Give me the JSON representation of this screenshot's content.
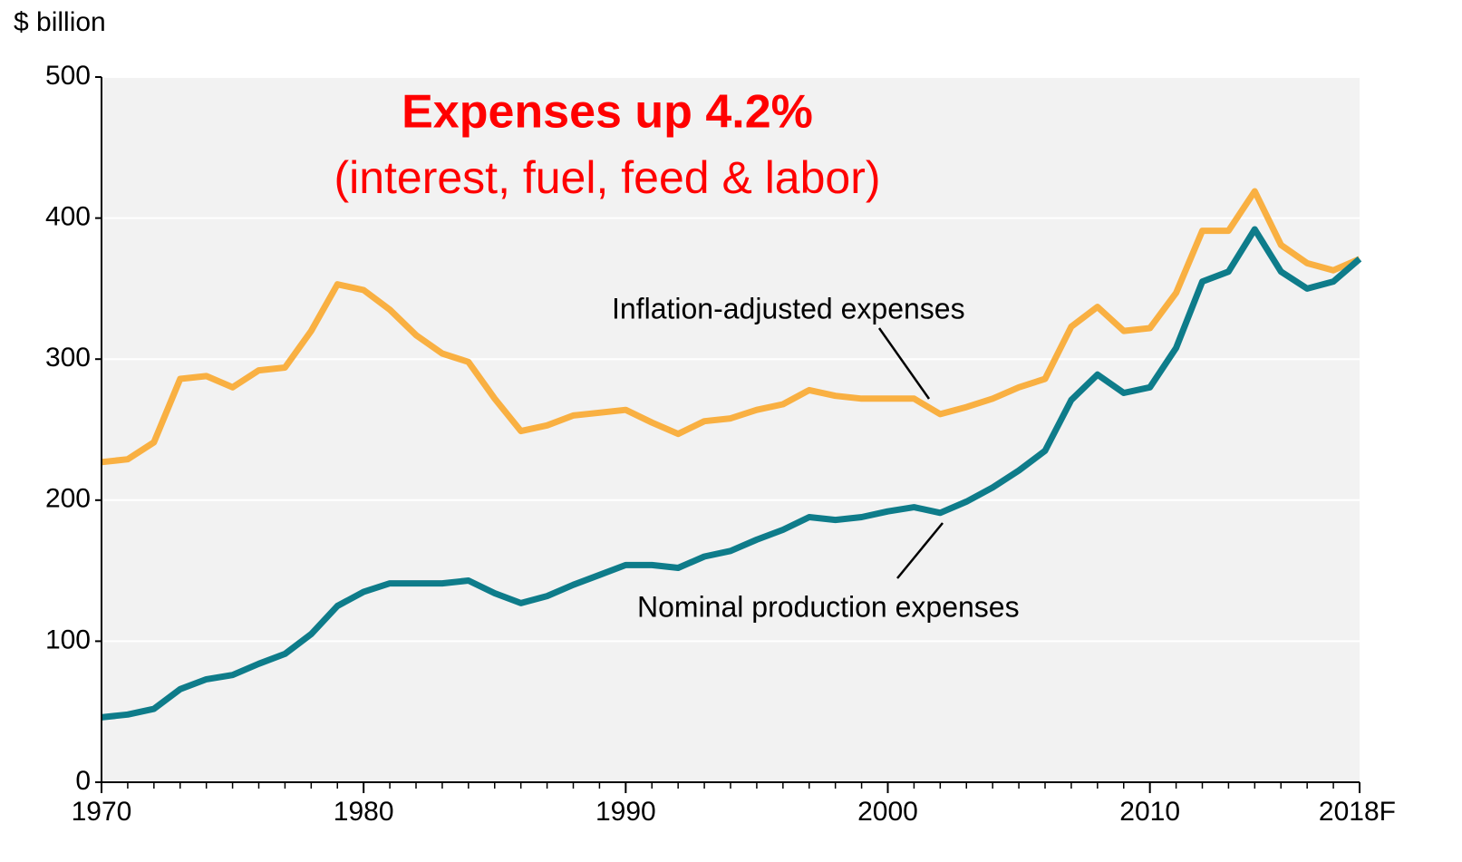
{
  "chart_data": {
    "type": "line",
    "title": "Expenses up 4.2%",
    "subtitle": "(interest, fuel, feed & labor)",
    "y_label": "$ billion",
    "x": [
      1970,
      1971,
      1972,
      1973,
      1974,
      1975,
      1976,
      1977,
      1978,
      1979,
      1980,
      1981,
      1982,
      1983,
      1984,
      1985,
      1986,
      1987,
      1988,
      1989,
      1990,
      1991,
      1992,
      1993,
      1994,
      1995,
      1996,
      1997,
      1998,
      1999,
      2000,
      2001,
      2002,
      2003,
      2004,
      2005,
      2006,
      2007,
      2008,
      2009,
      2010,
      2011,
      2012,
      2013,
      2014,
      2015,
      2016,
      2017,
      2018
    ],
    "series": [
      {
        "name": "Inflation-adjusted expenses",
        "color": "#f9b042",
        "values": [
          227,
          229,
          241,
          286,
          288,
          280,
          292,
          294,
          320,
          353,
          349,
          335,
          317,
          304,
          298,
          272,
          249,
          253,
          260,
          262,
          264,
          255,
          247,
          256,
          258,
          264,
          268,
          278,
          274,
          272,
          272,
          272,
          261,
          266,
          272,
          280,
          286,
          323,
          337,
          320,
          322,
          347,
          391,
          391,
          419,
          381,
          368,
          363,
          371
        ]
      },
      {
        "name": "Nominal production expenses",
        "color": "#0e7c8a",
        "values": [
          46,
          48,
          52,
          66,
          73,
          76,
          84,
          91,
          105,
          125,
          135,
          141,
          141,
          141,
          143,
          134,
          127,
          132,
          140,
          147,
          154,
          154,
          152,
          160,
          164,
          172,
          179,
          188,
          186,
          188,
          192,
          195,
          191,
          199,
          209,
          221,
          235,
          271,
          289,
          276,
          280,
          308,
          355,
          362,
          392,
          362,
          350,
          355,
          371
        ]
      }
    ],
    "xlim": [
      1970,
      2018
    ],
    "xticks": [
      1970,
      1980,
      1990,
      2000,
      2010,
      {
        "value": 2018,
        "label": "2018F"
      }
    ],
    "ylim": [
      0,
      500
    ],
    "yticks": [
      0,
      100,
      200,
      300,
      400,
      500
    ],
    "grid": true
  }
}
